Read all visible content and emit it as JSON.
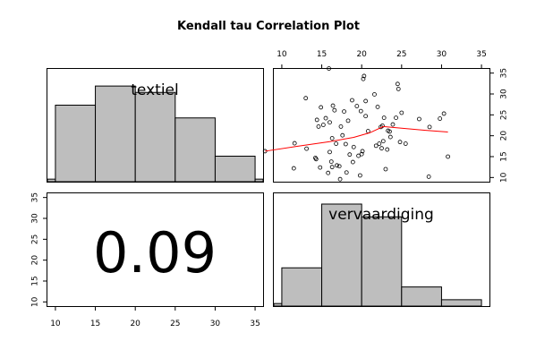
{
  "chart_data": {
    "type": "pairs",
    "title": "Kendall tau Correlation Plot",
    "variables": [
      "textiel",
      "vervaardiging"
    ],
    "correlation": "0.09",
    "axis": {
      "ticks": [
        10,
        15,
        20,
        25,
        30,
        35
      ],
      "range": [
        9,
        36
      ]
    },
    "histograms": [
      {
        "variable": "textiel",
        "bins": [
          {
            "from": 5,
            "to": 10,
            "count": 0.4
          },
          {
            "from": 10,
            "to": 15,
            "count": 12
          },
          {
            "from": 15,
            "to": 20,
            "count": 15
          },
          {
            "from": 20,
            "to": 25,
            "count": 14
          },
          {
            "from": 25,
            "to": 30,
            "count": 10
          },
          {
            "from": 30,
            "to": 35,
            "count": 4
          },
          {
            "from": 35,
            "to": 40,
            "count": 0.4
          }
        ]
      },
      {
        "variable": "vervaardiging",
        "bins": [
          {
            "from": 5,
            "to": 10,
            "count": 0.4
          },
          {
            "from": 10,
            "to": 15,
            "count": 6
          },
          {
            "from": 15,
            "to": 20,
            "count": 16
          },
          {
            "from": 20,
            "to": 25,
            "count": 14
          },
          {
            "from": 25,
            "to": 30,
            "count": 3
          },
          {
            "from": 30,
            "to": 35,
            "count": 1
          }
        ]
      }
    ],
    "scatter": {
      "x_variable": "vervaardiging",
      "y_variable": "textiel",
      "points": [
        [
          7.9,
          16.3
        ],
        [
          11.5,
          12.2
        ],
        [
          11.6,
          18.2
        ],
        [
          13.0,
          29.0
        ],
        [
          13.1,
          16.9
        ],
        [
          14.2,
          14.7
        ],
        [
          14.3,
          14.4
        ],
        [
          14.4,
          23.8
        ],
        [
          14.6,
          22.2
        ],
        [
          14.8,
          12.4
        ],
        [
          14.9,
          26.8
        ],
        [
          15.2,
          22.6
        ],
        [
          15.5,
          24.2
        ],
        [
          15.8,
          11.1
        ],
        [
          15.9,
          36.1
        ],
        [
          16.0,
          23.2
        ],
        [
          16.0,
          16.1
        ],
        [
          16.2,
          13.8
        ],
        [
          16.3,
          12.5
        ],
        [
          16.3,
          19.4
        ],
        [
          16.4,
          27.2
        ],
        [
          16.6,
          26.1
        ],
        [
          16.8,
          18.1
        ],
        [
          16.9,
          12.9
        ],
        [
          17.2,
          12.7
        ],
        [
          17.3,
          9.6
        ],
        [
          17.4,
          22.2
        ],
        [
          17.6,
          20.1
        ],
        [
          17.8,
          25.8
        ],
        [
          18.0,
          18.0
        ],
        [
          18.1,
          11.2
        ],
        [
          18.3,
          23.6
        ],
        [
          18.5,
          15.5
        ],
        [
          18.8,
          28.5
        ],
        [
          18.9,
          13.7
        ],
        [
          19.0,
          17.3
        ],
        [
          19.4,
          27.1
        ],
        [
          19.6,
          15.2
        ],
        [
          19.8,
          10.5
        ],
        [
          19.9,
          25.9
        ],
        [
          20.0,
          15.6
        ],
        [
          20.1,
          16.3
        ],
        [
          20.3,
          34.3
        ],
        [
          20.2,
          33.6
        ],
        [
          20.5,
          24.7
        ],
        [
          20.5,
          28.3
        ],
        [
          20.8,
          21.1
        ],
        [
          21.6,
          29.9
        ],
        [
          21.8,
          17.6
        ],
        [
          22.0,
          26.9
        ],
        [
          22.2,
          18.1
        ],
        [
          22.4,
          22.1
        ],
        [
          22.6,
          22.4
        ],
        [
          22.5,
          17.0
        ],
        [
          22.7,
          18.7
        ],
        [
          22.8,
          24.3
        ],
        [
          23.0,
          12.0
        ],
        [
          23.2,
          16.7
        ],
        [
          23.3,
          21.2
        ],
        [
          23.5,
          21.0
        ],
        [
          23.6,
          19.7
        ],
        [
          23.9,
          22.7
        ],
        [
          24.3,
          24.3
        ],
        [
          24.5,
          32.4
        ],
        [
          24.6,
          31.2
        ],
        [
          24.8,
          18.5
        ],
        [
          25.0,
          25.5
        ],
        [
          25.5,
          18.1
        ],
        [
          27.2,
          24.0
        ],
        [
          28.4,
          10.2
        ],
        [
          28.5,
          22.1
        ],
        [
          29.8,
          24.1
        ],
        [
          30.3,
          25.3
        ],
        [
          30.8,
          15.0
        ]
      ],
      "smoother": [
        [
          7.9,
          16.3
        ],
        [
          12.0,
          17.5
        ],
        [
          16.0,
          18.6
        ],
        [
          19.0,
          19.6
        ],
        [
          21.0,
          20.7
        ],
        [
          22.7,
          22.2
        ],
        [
          25.0,
          21.8
        ],
        [
          28.0,
          21.3
        ],
        [
          30.8,
          20.9
        ]
      ]
    }
  }
}
